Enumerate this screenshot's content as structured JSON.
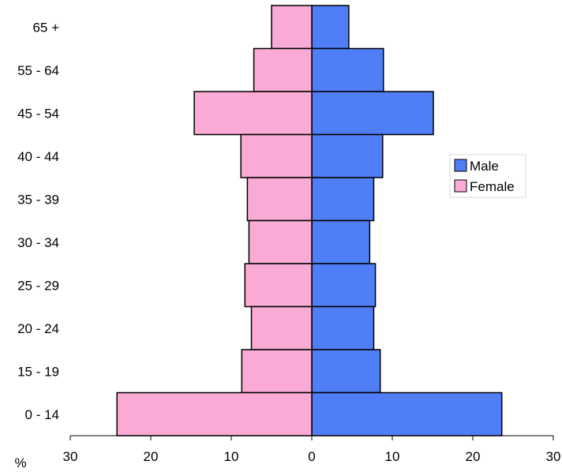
{
  "chart_data": {
    "type": "bar",
    "orientation": "horizontal",
    "layout": "population-pyramid",
    "categories": [
      "65 +",
      "55 - 64",
      "45 - 54",
      "40 - 44",
      "35 - 39",
      "30 - 34",
      "25 - 29",
      "20 - 24",
      "15 - 19",
      "0 - 14"
    ],
    "series": [
      {
        "name": "Male",
        "color": "#4f7ef7",
        "side": "right",
        "values": [
          4.6,
          8.9,
          15.1,
          8.8,
          7.7,
          7.2,
          7.9,
          7.7,
          8.5,
          23.6
        ]
      },
      {
        "name": "Female",
        "color": "#f9aad5",
        "side": "left",
        "values": [
          5.0,
          7.2,
          14.6,
          8.8,
          8.0,
          7.8,
          8.3,
          7.5,
          8.7,
          24.2
        ]
      }
    ],
    "xlim": [
      -30,
      30
    ],
    "x_ticks": [
      -30,
      -20,
      -10,
      0,
      10,
      20,
      30
    ],
    "x_tick_labels": [
      "30",
      "20",
      "10",
      "0",
      "10",
      "20",
      "30"
    ],
    "xlabel": "%",
    "ylabel": "",
    "title": "",
    "grid": false,
    "legend": {
      "position": "right",
      "entries": [
        "Male",
        "Female"
      ]
    }
  }
}
